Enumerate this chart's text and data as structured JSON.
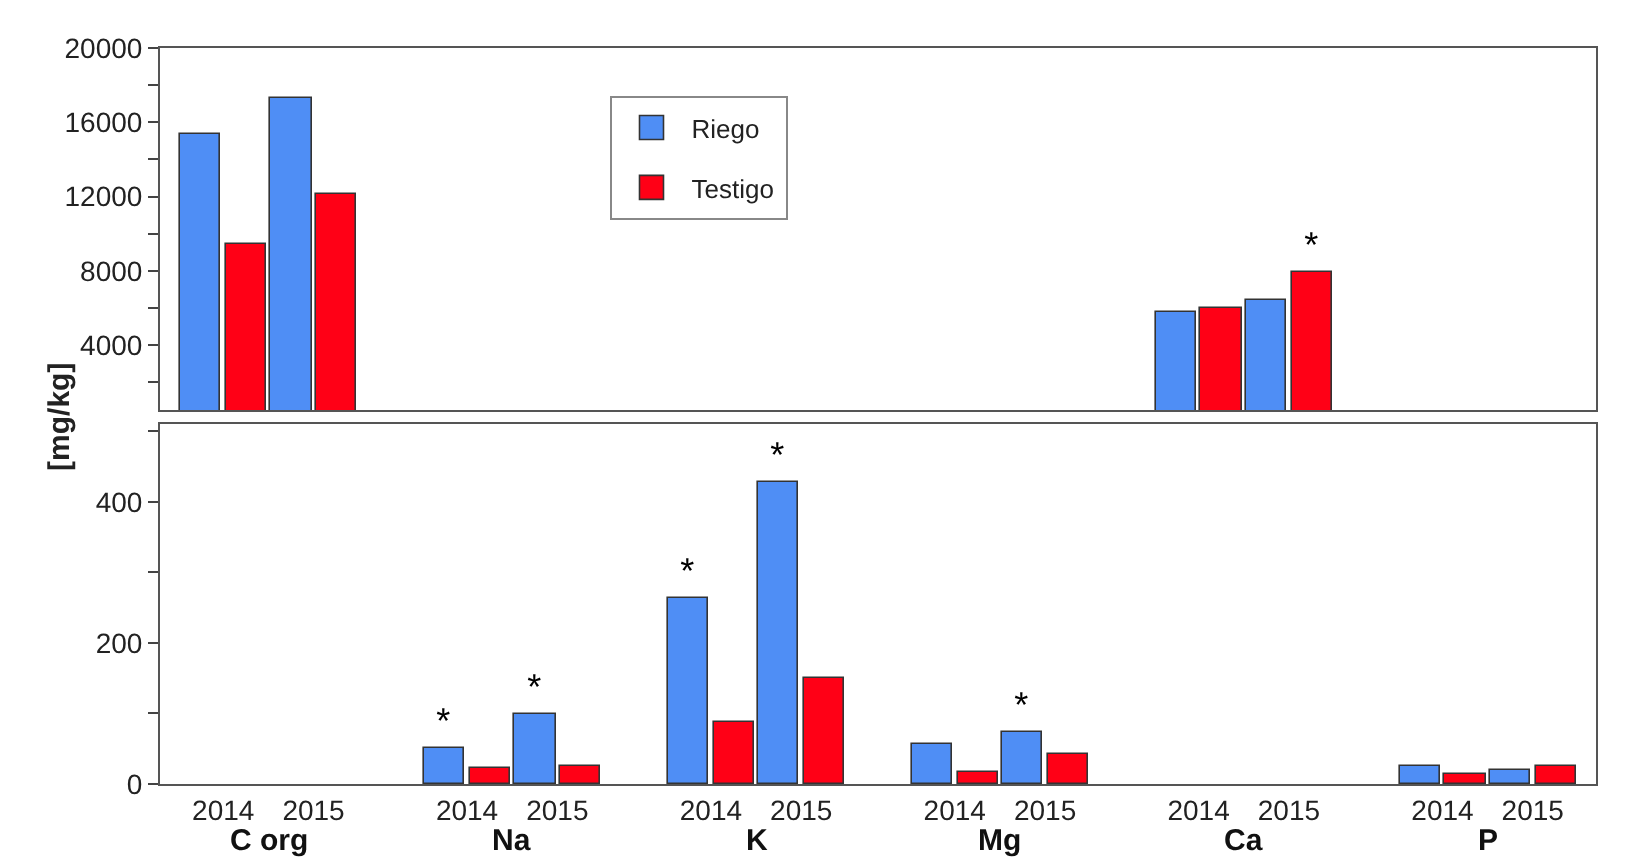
{
  "chart_data": [
    {
      "type": "bar",
      "categories": [
        "2014",
        "2015",
        "2014",
        "2015",
        "2014",
        "2015",
        "2014",
        "2015",
        "2014",
        "2015",
        "2014",
        "2015"
      ],
      "series": [
        {
          "name": "Riego",
          "color": "#4f8ef5",
          "values": [
            15400,
            17300,
            null,
            null,
            null,
            null,
            null,
            null,
            5800,
            6400,
            null,
            null
          ],
          "value_labels": [
            null,
            null,
            null,
            null,
            null,
            null,
            null,
            null,
            null,
            null,
            null,
            null
          ]
        },
        {
          "name": "Testigo",
          "color": "#ff0016",
          "values": [
            9400,
            12100,
            null,
            null,
            null,
            null,
            null,
            null,
            6000,
            7900,
            null,
            null
          ],
          "value_labels": [
            null,
            null,
            null,
            null,
            null,
            null,
            null,
            null,
            null,
            "*",
            null,
            null
          ]
        }
      ],
      "ylim": [
        500,
        20000
      ],
      "yticks": [
        {
          "value": 2000,
          "label": null
        },
        4000,
        {
          "value": 6000,
          "label": null
        },
        8000,
        {
          "value": 10000,
          "label": null
        },
        12000,
        {
          "value": 14000,
          "label": null
        },
        16000,
        {
          "value": 18000,
          "label": null
        },
        20000
      ],
      "tick_labels": "y",
      "legend": "top"
    },
    {
      "type": "bar",
      "categories": [
        "2014",
        "2015",
        "2014",
        "2015",
        "2014",
        "2015",
        "2014",
        "2015",
        "2014",
        "2015",
        "2014",
        "2015"
      ],
      "series": [
        {
          "color": "#4f8ef5",
          "values": [
            null,
            null,
            51,
            99,
            263,
            429,
            57,
            74,
            null,
            null,
            24,
            21
          ],
          "value_labels": [
            null,
            null,
            "*",
            "*",
            "*",
            "*",
            null,
            "*",
            null,
            null,
            null,
            null
          ]
        },
        {
          "color": "#ff0016",
          "values": [
            null,
            null,
            23,
            26,
            89,
            151,
            16,
            43,
            null,
            null,
            14,
            26
          ],
          "value_labels": [
            null,
            null,
            null,
            null,
            null,
            null,
            null,
            null,
            null,
            null,
            null,
            null
          ]
        }
      ],
      "ylim": [
        0,
        510
      ],
      "yticks": [
        0,
        {
          "value": 100,
          "label": null
        },
        200,
        {
          "value": 300,
          "label": null
        },
        400,
        {
          "value": 500,
          "label": null
        }
      ],
      "ylabel": "[mg/kg]",
      "legend": false,
      "annotations": [
        "C org",
        "Na",
        "K",
        "Mg",
        "Ca",
        "P"
      ]
    }
  ]
}
